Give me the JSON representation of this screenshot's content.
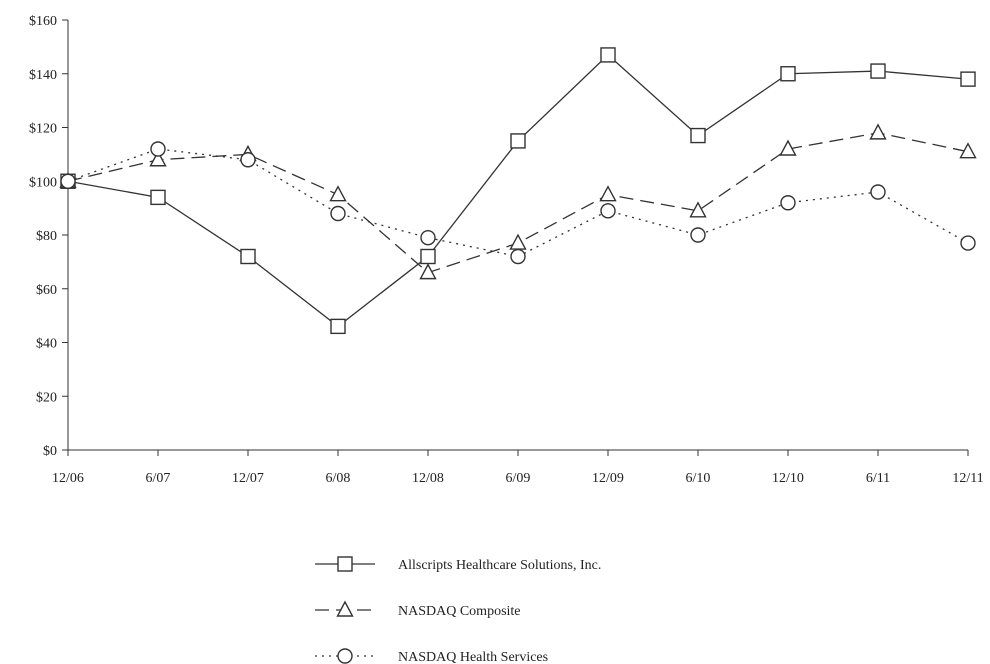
{
  "chart_data": {
    "type": "line",
    "title": "",
    "xlabel": "",
    "ylabel": "",
    "categories": [
      "12/06",
      "6/07",
      "12/07",
      "6/08",
      "12/08",
      "6/09",
      "12/09",
      "6/10",
      "12/10",
      "6/11",
      "12/11"
    ],
    "ylim": [
      0,
      160
    ],
    "yticks": [
      0,
      20,
      40,
      60,
      80,
      100,
      120,
      140,
      160
    ],
    "ytick_labels": [
      "$0",
      "$20",
      "$40",
      "$60",
      "$80",
      "$100",
      "$120",
      "$140",
      "$160"
    ],
    "grid": false,
    "legend_position": "bottom-center",
    "series": [
      {
        "name": "Allscripts Healthcare Solutions, Inc.",
        "values": [
          100,
          94,
          72,
          46,
          72,
          115,
          147,
          117,
          140,
          141,
          138
        ],
        "line_style": "solid",
        "marker": "square",
        "color": "#333333"
      },
      {
        "name": "NASDAQ Composite",
        "values": [
          100,
          108,
          110,
          95,
          66,
          77,
          95,
          89,
          112,
          118,
          111
        ],
        "line_style": "dashed",
        "marker": "triangle",
        "color": "#333333"
      },
      {
        "name": "NASDAQ Health Services",
        "values": [
          100,
          112,
          108,
          88,
          79,
          72,
          89,
          80,
          92,
          96,
          77
        ],
        "line_style": "dotted",
        "marker": "circle",
        "color": "#333333"
      }
    ]
  }
}
